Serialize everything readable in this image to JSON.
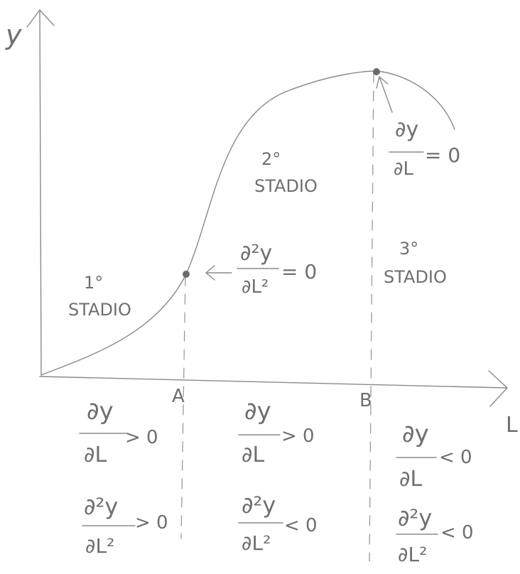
{
  "axes": {
    "y_label": "y",
    "x_label": "L"
  },
  "points": {
    "a": "A",
    "b": "B"
  },
  "stages": {
    "first": {
      "ordinal": "1°",
      "word": "STADIO"
    },
    "second": {
      "ordinal": "2°",
      "word": "STADIO"
    },
    "third": {
      "ordinal": "3°",
      "word": "STADIO"
    }
  },
  "annotations": {
    "inflection": {
      "numerator": "∂²y",
      "denominator": "∂L²",
      "relation": "= 0"
    },
    "maximum": {
      "numerator": "∂y",
      "denominator": "∂L",
      "relation": "= 0"
    }
  },
  "conditions": {
    "stage1": {
      "first": {
        "numerator": "∂y",
        "denominator": "∂L",
        "relation": "> 0"
      },
      "second": {
        "numerator": "∂²y",
        "denominator": "∂L²",
        "relation": "> 0"
      }
    },
    "stage2": {
      "first": {
        "numerator": "∂y",
        "denominator": "∂L",
        "relation": "> 0"
      },
      "second": {
        "numerator": "∂²y",
        "denominator": "∂L²",
        "relation": "< 0"
      }
    },
    "stage3": {
      "first": {
        "numerator": "∂y",
        "denominator": "∂L",
        "relation": "< 0"
      },
      "second": {
        "numerator": "∂²y",
        "denominator": "∂L²",
        "relation": "< 0"
      }
    }
  }
}
